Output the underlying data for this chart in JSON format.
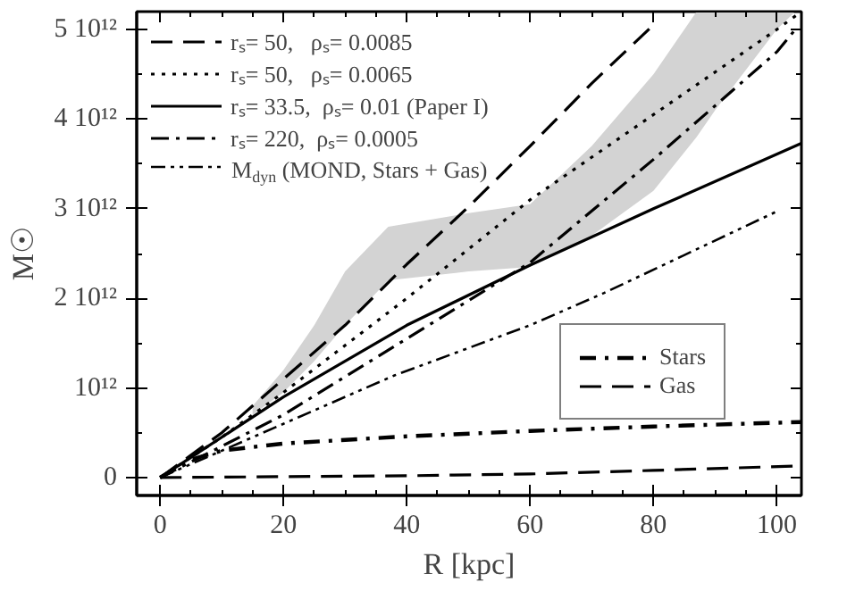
{
  "chart_data": {
    "type": "line",
    "xlabel": "R [kpc]",
    "ylabel": "M☉",
    "xlim": [
      -3.8,
      104
    ],
    "ylim": [
      -200000000000.0,
      5200000000000.0
    ],
    "xticks": [
      0,
      20,
      40,
      60,
      80,
      100
    ],
    "yticks": [
      {
        "value": 0,
        "label": "0"
      },
      {
        "value": 1000000000000.0,
        "label": "10¹²"
      },
      {
        "value": 2000000000000.0,
        "label": "2 10¹²"
      },
      {
        "value": 3000000000000.0,
        "label": "3 10¹²"
      },
      {
        "value": 4000000000000.0,
        "label": "4 10¹²"
      },
      {
        "value": 5000000000000.0,
        "label": "5 10¹²"
      }
    ],
    "grid": false,
    "legend": [
      "top left",
      "bottom right"
    ],
    "marker": "none",
    "series": [
      {
        "type": "area",
        "color": "#d3d3d3",
        "x": [
          15,
          20,
          25,
          30,
          37,
          50,
          60,
          70,
          80,
          87,
          90,
          100,
          103
        ],
        "values": [
          null,
          null,
          null,
          null,
          null,
          null,
          null,
          null,
          null,
          null,
          null,
          null,
          null
        ],
        "lower": [
          700000000000.0,
          950000000000.0,
          1300000000000.0,
          1700000000000.0,
          2200000000000.0,
          2300000000000.0,
          2350000000000.0,
          2700000000000.0,
          3200000000000.0,
          3800000000000.0,
          4100000000000.0,
          5000000000000.0,
          5200000000000.0
        ],
        "upper": [
          800000000000.0,
          1200000000000.0,
          1700000000000.0,
          2300000000000.0,
          2800000000000.0,
          2950000000000.0,
          3050000000000.0,
          3700000000000.0,
          4500000000000.0,
          5200000000000.0,
          5200000000000.0,
          5200000000000.0,
          5200000000000.0
        ]
      },
      {
        "name": "rₛ= 50,   ρₛ= 0.0085",
        "color": "#000000",
        "line_style": "dashed",
        "x": [
          0,
          10,
          20,
          30,
          40,
          50,
          60,
          70,
          80
        ],
        "values": [
          0,
          500000000000.0,
          1100000000000.0,
          1700000000000.0,
          2380000000000.0,
          3020000000000.0,
          3700000000000.0,
          4400000000000.0,
          5050000000000.0
        ]
      },
      {
        "name": "rₛ= 50,   ρₛ= 0.0065",
        "color": "#000000",
        "line_style": "dotted",
        "x": [
          0,
          10,
          20,
          40,
          60,
          80,
          100,
          104
        ],
        "values": [
          0,
          450000000000.0,
          950000000000.0,
          2000000000000.0,
          3100000000000.0,
          4050000000000.0,
          5000000000000.0,
          5200000000000.0
        ]
      },
      {
        "name": "rₛ= 33.5,  ρₛ= 0.01 (Paper I)",
        "color": "#000000",
        "line_style": "solid",
        "x": [
          0,
          20,
          40,
          60,
          80,
          104
        ],
        "values": [
          0,
          900000000000.0,
          1700000000000.0,
          2370000000000.0,
          3000000000000.0,
          3730000000000.0
        ]
      },
      {
        "name": "rₛ= 220,  ρₛ= 0.0005",
        "color": "#000000",
        "line_style": "dashdot",
        "x": [
          0,
          20,
          40,
          60,
          80,
          100,
          103
        ],
        "values": [
          0,
          700000000000.0,
          1550000000000.0,
          2400000000000.0,
          3550000000000.0,
          4750000000000.0,
          5000000000000.0
        ]
      },
      {
        "name": "M$_{dyn}$ (MOND, Stars + Gas)",
        "color": "#000000",
        "line_style": "dashdotdot",
        "x": [
          0,
          20,
          38,
          60,
          72,
          100
        ],
        "values": [
          0,
          600000000000.0,
          1140000000000.0,
          1700000000000.0,
          2060000000000.0,
          2970000000000.0
        ]
      },
      {
        "name": "Stars",
        "color": "#000000",
        "line_style": "longdashdot",
        "x": [
          0,
          5,
          10,
          20,
          40,
          60,
          80,
          104
        ],
        "values": [
          0,
          200000000000.0,
          300000000000.0,
          380000000000.0,
          460000000000.0,
          520000000000.0,
          570000000000.0,
          620000000000.0
        ]
      },
      {
        "name": "Gas",
        "color": "#000000",
        "line_style": "dashed",
        "x": [
          0,
          20,
          40,
          60,
          80,
          104
        ],
        "values": [
          0,
          10000000000.0,
          20000000000.0,
          40000000000.0,
          80000000000.0,
          130000000000.0
        ]
      }
    ]
  }
}
